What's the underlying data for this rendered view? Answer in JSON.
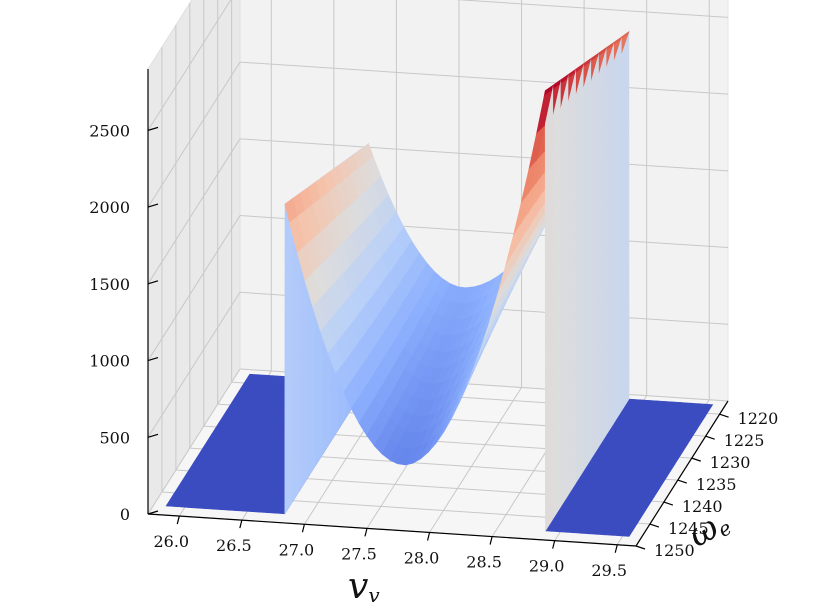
{
  "chart_data": {
    "type": "surface3d",
    "title": "",
    "colormap": "coolwarm",
    "grid": true,
    "x_axis": {
      "label_main": "v",
      "label_sub": "v",
      "range": [
        25.75,
        29.65
      ],
      "ticks": [
        "26.0",
        "26.5",
        "27.0",
        "27.5",
        "28.0",
        "28.5",
        "29.0",
        "29.5"
      ]
    },
    "y_axis": {
      "label_main": "ω",
      "label_sub": "e",
      "range": [
        1217,
        1250
      ],
      "ticks": [
        "1220",
        "1225",
        "1230",
        "1235",
        "1240",
        "1245",
        "1250"
      ]
    },
    "z_axis": {
      "label": "",
      "range": [
        0,
        2900
      ],
      "ticks": [
        "0",
        "500",
        "1000",
        "1500",
        "2000",
        "2500"
      ]
    },
    "surface": {
      "support_v": [
        26.8,
        28.88
      ],
      "floor_z": 0,
      "min_z": 350,
      "peak_z_left_edge": 2050,
      "peak_z_right_edge": 2900
    }
  }
}
